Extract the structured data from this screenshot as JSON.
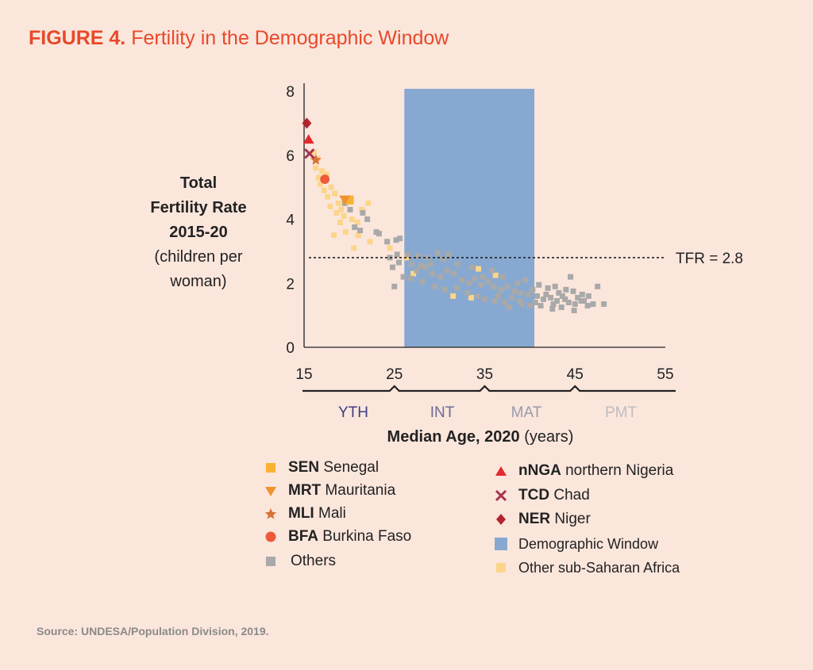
{
  "figure": {
    "label": "FIGURE 4.",
    "title": "Fertility in the Demographic Window"
  },
  "y_axis_title": {
    "line1": "Total",
    "line2": "Fertility Rate",
    "line3": "2015-20",
    "line4": "(children per",
    "line5": "woman)"
  },
  "x_axis_title": {
    "bold": "Median Age, 2020",
    "unit": "(years)"
  },
  "source": "Source: UNDESA/Population Division, 2019.",
  "colors": {
    "title": "#e8492a",
    "background": "#fbe6dc",
    "window": "#87a9d1",
    "others": "#a9a9a9",
    "ssa": "#fcd58a",
    "SEN": "#f9b233",
    "MRT": "#f0922c",
    "MLI": "#d9703a",
    "BFA": "#ed5a3a",
    "nNGA": "#e32a2d",
    "TCD": "#a8334f",
    "NER": "#b4242e"
  },
  "legend": {
    "left": [
      {
        "code": "SEN",
        "name": "Senegal",
        "marker": "square",
        "color": "#f9b233"
      },
      {
        "code": "MRT",
        "name": "Mauritania",
        "marker": "triangle-down",
        "color": "#f0922c"
      },
      {
        "code": "MLI",
        "name": "Mali",
        "marker": "star",
        "color": "#d9703a"
      },
      {
        "code": "BFA",
        "name": "Burkina Faso",
        "marker": "circle",
        "color": "#ed5a3a"
      },
      {
        "code": "",
        "name": "Others",
        "marker": "square",
        "color": "#a9a9a9"
      }
    ],
    "right": [
      {
        "code": "nNGA",
        "name": "northern Nigeria",
        "marker": "triangle-up",
        "color": "#e32a2d"
      },
      {
        "code": "TCD",
        "name": "Chad",
        "marker": "x",
        "color": "#a8334f"
      },
      {
        "code": "NER",
        "name": "Niger",
        "marker": "diamond",
        "color": "#b4242e"
      },
      {
        "code": "",
        "name": "Demographic Window",
        "marker": "rect",
        "color": "#87a9d1"
      },
      {
        "code": "",
        "name": "Other sub-Saharan Africa",
        "marker": "square",
        "color": "#fcd58a"
      }
    ]
  },
  "chart_data": {
    "type": "scatter",
    "xlabel": "Median Age, 2020 (years)",
    "ylabel": "Total Fertility Rate 2015-20 (children per woman)",
    "xlim": [
      15,
      55
    ],
    "ylim": [
      0,
      8
    ],
    "x_ticks": [
      15,
      25,
      35,
      45,
      55
    ],
    "y_ticks": [
      0,
      2,
      4,
      6,
      8
    ],
    "grid": false,
    "demographic_window": {
      "x_start": 26.1,
      "x_end": 40.5,
      "label": "Demographic Window"
    },
    "reference_line": {
      "y": 2.8,
      "label": "TFR = 2.8"
    },
    "age_groups": [
      {
        "label": "YTH",
        "x_start": 15,
        "x_end": 26,
        "color": "#3f3d80"
      },
      {
        "label": "INT",
        "x_start": 26,
        "x_end": 36,
        "color": "#6a6a96"
      },
      {
        "label": "MAT",
        "x_start": 36,
        "x_end": 46,
        "color": "#9a9aae"
      },
      {
        "label": "PMT",
        "x_start": 46,
        "x_end": 57,
        "color": "#bdbdbd"
      }
    ],
    "highlighted": [
      {
        "code": "NER",
        "name": "Niger",
        "x": 15.3,
        "y": 7.0
      },
      {
        "code": "nNGA",
        "name": "northern Nigeria",
        "x": 15.5,
        "y": 6.5
      },
      {
        "code": "TCD",
        "name": "Chad",
        "x": 15.6,
        "y": 6.05
      },
      {
        "code": "MLI",
        "name": "Mali",
        "x": 16.3,
        "y": 5.85
      },
      {
        "code": "BFA",
        "name": "Burkina Faso",
        "x": 17.3,
        "y": 5.25
      },
      {
        "code": "MRT",
        "name": "Mauritania",
        "x": 19.5,
        "y": 4.6
      },
      {
        "code": "SEN",
        "name": "Senegal",
        "x": 20.0,
        "y": 4.6
      }
    ],
    "series": [
      {
        "name": "Other sub-Saharan Africa",
        "points": [
          [
            16.1,
            6.1
          ],
          [
            16.5,
            5.9
          ],
          [
            16.3,
            5.6
          ],
          [
            17.0,
            5.5
          ],
          [
            17.5,
            5.4
          ],
          [
            16.8,
            5.1
          ],
          [
            17.2,
            4.9
          ],
          [
            18.0,
            5.0
          ],
          [
            17.6,
            4.7
          ],
          [
            18.4,
            4.8
          ],
          [
            18.8,
            4.5
          ],
          [
            19.1,
            4.3
          ],
          [
            18.6,
            4.2
          ],
          [
            19.4,
            4.1
          ],
          [
            20.3,
            4.0
          ],
          [
            20.9,
            3.9
          ],
          [
            21.4,
            4.3
          ],
          [
            22.1,
            4.5
          ],
          [
            19.0,
            3.9
          ],
          [
            18.3,
            3.5
          ],
          [
            19.6,
            3.6
          ],
          [
            21.0,
            3.5
          ],
          [
            20.5,
            3.1
          ],
          [
            22.3,
            3.3
          ],
          [
            24.5,
            3.1
          ],
          [
            26.3,
            2.8
          ],
          [
            27.1,
            2.3
          ],
          [
            34.3,
            2.45
          ],
          [
            36.2,
            2.25
          ],
          [
            31.5,
            1.6
          ],
          [
            33.5,
            1.55
          ],
          [
            17.9,
            4.4
          ],
          [
            16.6,
            5.3
          ]
        ]
      },
      {
        "name": "Others",
        "points": [
          [
            19.5,
            4.5
          ],
          [
            20.1,
            4.3
          ],
          [
            21.5,
            4.2
          ],
          [
            22.0,
            4.0
          ],
          [
            20.6,
            3.75
          ],
          [
            21.2,
            3.65
          ],
          [
            23.0,
            3.6
          ],
          [
            23.3,
            3.55
          ],
          [
            24.2,
            3.3
          ],
          [
            25.2,
            3.35
          ],
          [
            25.6,
            3.4
          ],
          [
            24.5,
            2.8
          ],
          [
            25.3,
            2.9
          ],
          [
            24.8,
            2.5
          ],
          [
            25.0,
            1.9
          ],
          [
            26.5,
            2.9
          ],
          [
            27.6,
            2.85
          ],
          [
            28.6,
            2.8
          ],
          [
            29.8,
            2.95
          ],
          [
            31.0,
            2.9
          ],
          [
            26.9,
            2.6
          ],
          [
            27.5,
            2.4
          ],
          [
            28.4,
            2.5
          ],
          [
            29.2,
            2.3
          ],
          [
            30.1,
            2.2
          ],
          [
            30.8,
            2.4
          ],
          [
            31.6,
            2.3
          ],
          [
            32.5,
            2.1
          ],
          [
            33.3,
            2.0
          ],
          [
            33.9,
            2.15
          ],
          [
            34.6,
            1.95
          ],
          [
            35.4,
            2.05
          ],
          [
            36.0,
            1.9
          ],
          [
            36.8,
            1.8
          ],
          [
            37.5,
            1.9
          ],
          [
            38.3,
            1.75
          ],
          [
            39.0,
            1.7
          ],
          [
            39.8,
            1.65
          ],
          [
            40.3,
            1.8
          ],
          [
            28.1,
            2.05
          ],
          [
            29.5,
            1.9
          ],
          [
            30.6,
            1.8
          ],
          [
            31.9,
            1.85
          ],
          [
            33.1,
            1.7
          ],
          [
            34.2,
            1.6
          ],
          [
            35.0,
            1.5
          ],
          [
            36.1,
            1.45
          ],
          [
            37.2,
            1.4
          ],
          [
            38.0,
            1.55
          ],
          [
            39.1,
            1.35
          ],
          [
            40.0,
            1.3
          ],
          [
            37.7,
            1.25
          ],
          [
            38.9,
            1.45
          ],
          [
            36.5,
            1.6
          ],
          [
            40.8,
            1.6
          ],
          [
            41.5,
            1.5
          ],
          [
            42.3,
            1.55
          ],
          [
            43.0,
            1.45
          ],
          [
            43.6,
            1.6
          ],
          [
            44.3,
            1.4
          ],
          [
            45.0,
            1.35
          ],
          [
            45.7,
            1.45
          ],
          [
            46.4,
            1.3
          ],
          [
            47.0,
            1.35
          ],
          [
            48.2,
            1.35
          ],
          [
            42.0,
            1.85
          ],
          [
            42.8,
            1.9
          ],
          [
            44.0,
            1.8
          ],
          [
            44.8,
            1.75
          ],
          [
            45.8,
            1.65
          ],
          [
            46.5,
            1.6
          ],
          [
            47.5,
            1.9
          ],
          [
            44.5,
            2.2
          ],
          [
            41.2,
            1.3
          ],
          [
            42.5,
            1.2
          ],
          [
            43.5,
            1.25
          ],
          [
            44.9,
            1.15
          ],
          [
            41.8,
            1.65
          ],
          [
            43.2,
            1.7
          ],
          [
            45.3,
            1.55
          ],
          [
            46.0,
            1.45
          ],
          [
            38.6,
            2.0
          ],
          [
            39.5,
            2.1
          ],
          [
            35.8,
            2.4
          ],
          [
            37.0,
            2.2
          ],
          [
            32.0,
            2.6
          ],
          [
            33.6,
            2.5
          ],
          [
            34.8,
            2.2
          ],
          [
            26.0,
            2.2
          ],
          [
            26.8,
            2.15
          ],
          [
            27.9,
            2.55
          ],
          [
            30.4,
            2.75
          ],
          [
            25.5,
            2.65
          ],
          [
            29.0,
            2.6
          ],
          [
            41.0,
            1.95
          ],
          [
            42.6,
            1.35
          ],
          [
            43.9,
            1.5
          ],
          [
            40.6,
            1.4
          ]
        ]
      }
    ]
  }
}
